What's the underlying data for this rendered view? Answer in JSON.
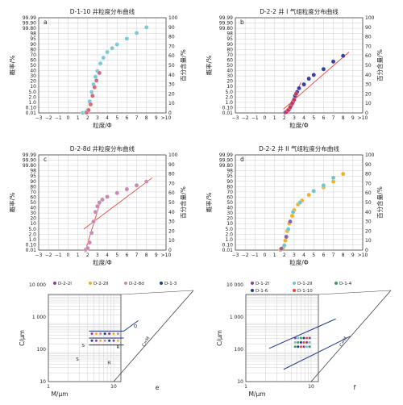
{
  "chart_data": [
    {
      "type": "scatter",
      "panel": "a",
      "title": "D-1-10 井粒度分布曲线",
      "xlabel": "粒度/Φ",
      "ylabel": "概率/%",
      "y2label": "百分含量/%",
      "xticks": [
        "−3",
        "−2",
        "−1",
        "0",
        "1",
        "2",
        "3",
        "4",
        "5",
        "6",
        "7",
        "8",
        "9",
        ">10"
      ],
      "yticks": [
        "0.01",
        "0.10",
        "1.0",
        "2.0",
        "5.0",
        "10",
        "20",
        "30",
        "40",
        "50",
        "60",
        "70",
        "80",
        "90",
        "95",
        "98",
        "99.80",
        "99.90",
        "99.99"
      ],
      "y2ticks": [
        "0",
        "10",
        "20",
        "30",
        "40",
        "50",
        "60",
        "70",
        "80",
        "90",
        "100"
      ],
      "series": [
        {
          "name": "",
          "color": "#7ec8d8",
          "points": [
            [
              1.5,
              0.05
            ],
            [
              1.8,
              0.6
            ],
            [
              2.0,
              3
            ],
            [
              2.2,
              12
            ],
            [
              2.4,
              22
            ],
            [
              2.6,
              30
            ],
            [
              2.8,
              38
            ],
            [
              3.0,
              44
            ],
            [
              3.3,
              52
            ],
            [
              3.6,
              58
            ],
            [
              4.0,
              64
            ],
            [
              4.5,
              68
            ],
            [
              5.0,
              72
            ],
            [
              6.0,
              78
            ],
            [
              7.0,
              84
            ],
            [
              8.0,
              90
            ]
          ]
        },
        {
          "name": "",
          "color": "#d46a7a",
          "points": [
            [
              1.9,
              0.4
            ],
            [
              2.1,
              3
            ],
            [
              2.3,
              9
            ],
            [
              2.5,
              18
            ],
            [
              2.7,
              27
            ],
            [
              2.9,
              34
            ],
            [
              3.2,
              42
            ]
          ]
        }
      ]
    },
    {
      "type": "scatter",
      "panel": "b",
      "title": "D-2-2 井 I 气组粒度分布曲线",
      "xlabel": "粒度/Φ",
      "ylabel": "概率/%",
      "y2label": "百分含量/%",
      "series": [
        {
          "name": "",
          "color": "#3a3aa8",
          "points": [
            [
              2.1,
              0.6
            ],
            [
              2.3,
              2
            ],
            [
              2.5,
              4
            ],
            [
              2.7,
              8
            ],
            [
              2.9,
              12
            ],
            [
              3.1,
              18
            ],
            [
              3.3,
              22
            ],
            [
              3.5,
              26
            ],
            [
              4.0,
              30
            ],
            [
              4.5,
              36
            ],
            [
              5.0,
              40
            ],
            [
              6.0,
              46
            ],
            [
              7.0,
              54
            ],
            [
              8.0,
              60
            ]
          ]
        },
        {
          "name": "",
          "color": "#cc3355",
          "points": [
            [
              2.2,
              1.0
            ],
            [
              2.4,
              3
            ],
            [
              2.6,
              6
            ],
            [
              2.8,
              10
            ],
            [
              3.0,
              14
            ],
            [
              3.2,
              20
            ]
          ]
        }
      ],
      "fit_lines": true
    },
    {
      "type": "scatter",
      "panel": "c",
      "title": "D-2-8d 井粒度分布曲线",
      "xlabel": "粒度/Φ",
      "ylabel": "概率/%",
      "y2label": "百分含量/%",
      "series": [
        {
          "name": "",
          "color": "#c889b4",
          "points": [
            [
              1.8,
              0.5
            ],
            [
              2.0,
              2
            ],
            [
              2.2,
              8
            ],
            [
              2.4,
              18
            ],
            [
              2.6,
              30
            ],
            [
              2.8,
              40
            ],
            [
              3.0,
              46
            ],
            [
              3.2,
              50
            ],
            [
              3.5,
              53
            ],
            [
              4.0,
              56
            ],
            [
              5.0,
              60
            ],
            [
              6.0,
              64
            ],
            [
              7.0,
              68
            ],
            [
              8.0,
              72
            ]
          ]
        }
      ],
      "fit_lines": true
    },
    {
      "type": "scatter",
      "panel": "d",
      "title": "D-2-2 井 II 气组粒度分布曲线",
      "xlabel": "粒度/Φ",
      "ylabel": "概率/%",
      "y2label": "百分含量/%",
      "series": [
        {
          "name": "",
          "color": "#f2b01e",
          "points": [
            [
              1.6,
              0.3
            ],
            [
              1.9,
              3
            ],
            [
              2.1,
              10
            ],
            [
              2.3,
              20
            ],
            [
              2.5,
              28
            ],
            [
              2.8,
              36
            ],
            [
              3.0,
              42
            ],
            [
              3.4,
              48
            ],
            [
              3.8,
              52
            ],
            [
              4.5,
              58
            ],
            [
              5.0,
              62
            ],
            [
              6.0,
              66
            ],
            [
              7.0,
              72
            ],
            [
              8.0,
              80
            ]
          ]
        },
        {
          "name": "",
          "color": "#6ec6c8",
          "points": [
            [
              2.0,
              5
            ],
            [
              2.4,
              22
            ],
            [
              2.9,
              40
            ],
            [
              3.6,
              50
            ],
            [
              5.0,
              62
            ],
            [
              6.0,
              68
            ],
            [
              7.0,
              76
            ]
          ]
        },
        {
          "name": "",
          "color": "#8a5fb0",
          "points": [
            [
              1.7,
              1.5
            ],
            [
              2.2,
              14
            ],
            [
              2.6,
              30
            ]
          ]
        }
      ]
    },
    {
      "type": "scatter",
      "panel": "e",
      "xlabel": "M/μm",
      "ylabel": "C/μm",
      "diag_label": "C=M",
      "yticks": [
        "10 000",
        "1 000",
        "100",
        "10"
      ],
      "xticks": [
        "1",
        "10"
      ],
      "legend": [
        "D-2-2I",
        "D-2-2II",
        "D-2-8d",
        "D-1-3"
      ],
      "legend_colors": [
        "#8a3fa0",
        "#f2b01e",
        "#c889b4",
        "#1f3a8a"
      ],
      "region_labels": [
        "Q",
        "S",
        "S",
        "R",
        "R"
      ]
    },
    {
      "type": "scatter",
      "panel": "f",
      "xlabel": "M/μm",
      "ylabel": "C/μm",
      "diag_label": "C=M",
      "yticks": [
        "10 000",
        "1 000",
        "100",
        "10"
      ],
      "xticks": [
        "1",
        "10"
      ],
      "legend": [
        "D-1-2I",
        "D-1-2II",
        "D-1-4",
        "D-1-6",
        "D-1-10"
      ],
      "legend_colors": [
        "#8a3fa0",
        "#6ec6c8",
        "#3a9d5d",
        "#1f3a8a",
        "#e8473c"
      ]
    }
  ]
}
